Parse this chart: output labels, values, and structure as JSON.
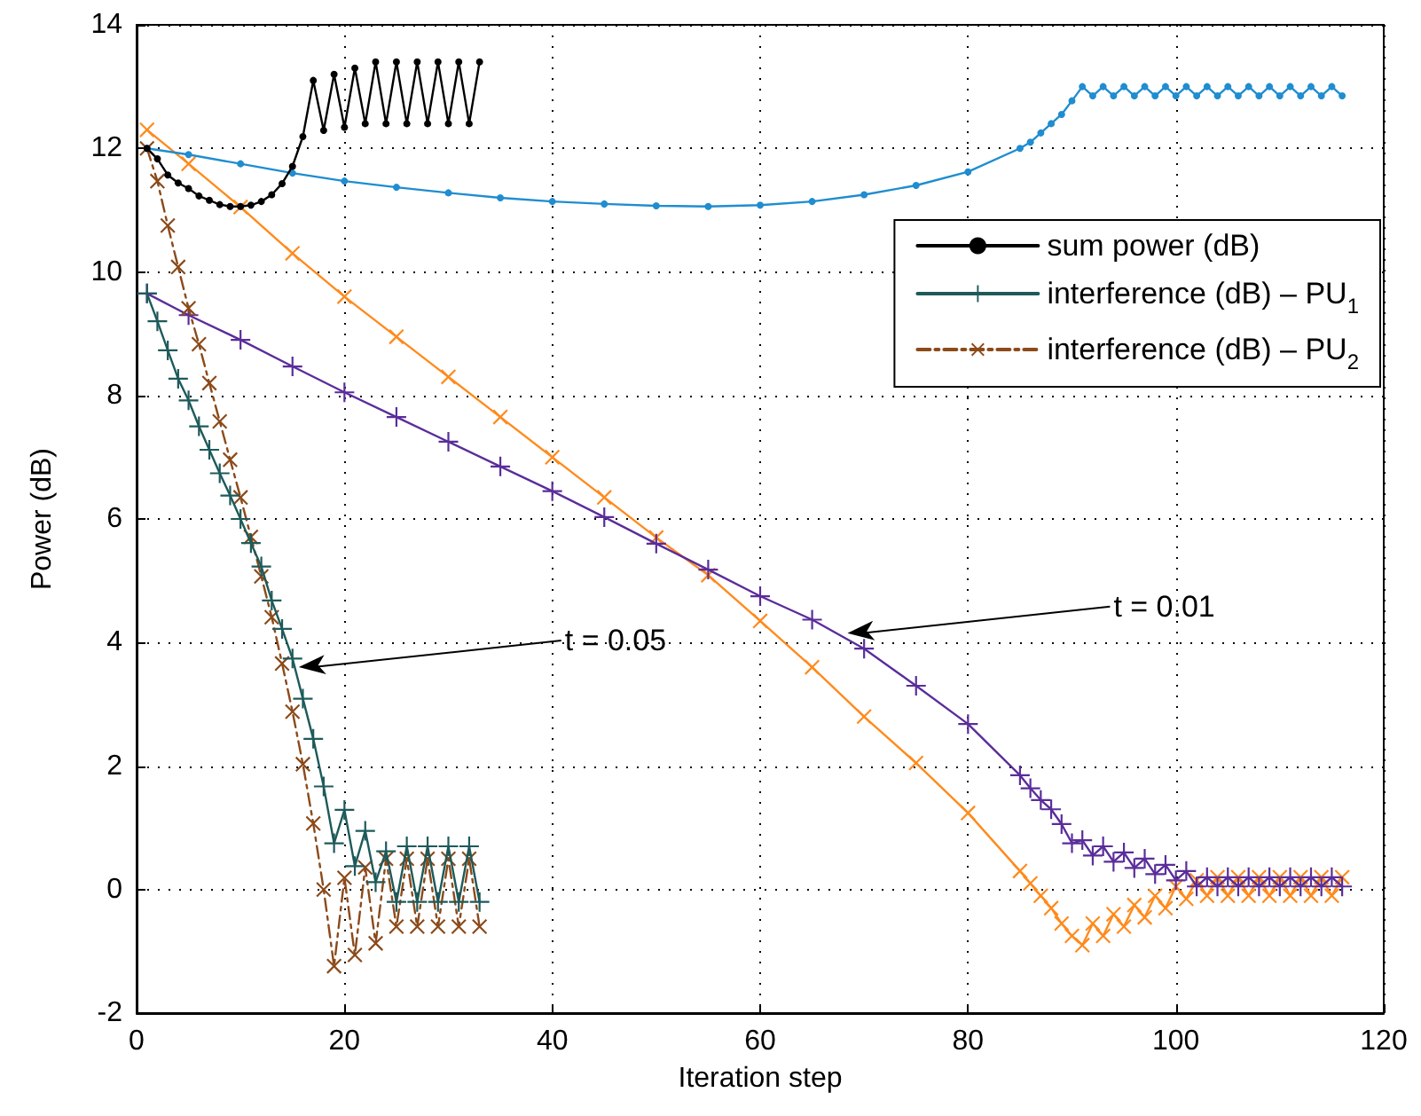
{
  "chart_data": {
    "type": "line",
    "xlabel": "Iteration step",
    "ylabel": "Power (dB)",
    "xlim": [
      0,
      120
    ],
    "xticks": [
      0,
      20,
      40,
      60,
      80,
      100,
      120
    ],
    "ylim": [
      -2,
      14
    ],
    "yticks": [
      -2,
      0,
      2,
      4,
      6,
      8,
      10,
      12,
      14
    ],
    "grid": true,
    "legend": "top right",
    "annotations": [
      {
        "text": "t = 0.05",
        "x": 15.6,
        "y": 3.6
      },
      {
        "text": "t = 0.01",
        "x": 68.4,
        "y": 4.15
      }
    ],
    "series": [
      {
        "name": "sum power (dB)",
        "color": "#000000",
        "marker": "circle",
        "line_style": "solid",
        "x": [
          1,
          2,
          3,
          4,
          5,
          6,
          7,
          8,
          9,
          10,
          11,
          12,
          13,
          14,
          15,
          16,
          17,
          18,
          19,
          20,
          21,
          22,
          23,
          24,
          25,
          26,
          27,
          28,
          29,
          30,
          31,
          32,
          33
        ],
        "values": [
          12.0,
          11.83,
          11.57,
          11.44,
          11.35,
          11.23,
          11.16,
          11.09,
          11.06,
          11.06,
          11.08,
          11.14,
          11.25,
          11.43,
          11.71,
          12.19,
          13.1,
          12.29,
          13.2,
          12.34,
          13.3,
          12.4,
          13.4,
          12.4,
          13.4,
          12.4,
          13.4,
          12.4,
          13.4,
          12.4,
          13.4,
          12.4,
          13.4
        ]
      },
      {
        "name": "interference (dB) – PU$_{1}$",
        "color": "#1e5a5a",
        "marker": "plus",
        "line_style": "solid",
        "x": [
          1,
          2,
          3,
          4,
          5,
          6,
          7,
          8,
          9,
          10,
          11,
          12,
          13,
          14,
          15,
          16,
          17,
          18,
          19,
          20,
          21,
          22,
          23,
          24,
          25,
          26,
          27,
          28,
          29,
          30,
          31,
          32,
          33
        ],
        "values": [
          9.65,
          9.2,
          8.73,
          8.27,
          7.92,
          7.5,
          7.12,
          6.74,
          6.38,
          6.0,
          5.61,
          5.23,
          4.68,
          4.22,
          3.74,
          3.09,
          2.44,
          1.67,
          0.75,
          1.29,
          0.38,
          0.95,
          0.12,
          0.62,
          -0.2,
          0.7,
          -0.2,
          0.7,
          -0.2,
          0.7,
          -0.2,
          0.7,
          -0.2
        ]
      },
      {
        "name": "interference (dB) – PU$_{2}$",
        "color": "#8b4a1a",
        "marker": "cross",
        "line_style": "dashed",
        "x": [
          1,
          2,
          3,
          4,
          5,
          6,
          7,
          8,
          9,
          10,
          11,
          12,
          13,
          14,
          15,
          16,
          17,
          18,
          19,
          20,
          21,
          22,
          23,
          24,
          25,
          26,
          27,
          28,
          29,
          30,
          31,
          32,
          33
        ],
        "values": [
          12.0,
          11.47,
          10.75,
          10.08,
          9.41,
          8.83,
          8.2,
          7.58,
          6.96,
          6.35,
          5.71,
          5.07,
          4.41,
          3.66,
          2.88,
          2.03,
          1.07,
          0.0,
          -1.24,
          0.19,
          -1.06,
          0.36,
          -0.87,
          0.5,
          -0.6,
          0.5,
          -0.6,
          0.5,
          -0.6,
          0.5,
          -0.6,
          0.5,
          -0.6
        ]
      },
      {
        "color": "#1f8dd0",
        "marker": "circle",
        "line_style": "solid",
        "x": [
          1,
          5,
          10,
          15,
          20,
          25,
          30,
          35,
          40,
          45,
          50,
          55,
          60,
          65,
          70,
          75,
          80,
          85,
          86,
          87,
          88,
          89,
          90,
          91,
          92,
          93,
          94,
          95,
          96,
          97,
          98,
          99,
          100,
          101,
          102,
          103,
          104,
          105,
          106,
          107,
          108,
          109,
          110,
          111,
          112,
          113,
          114,
          115,
          116
        ],
        "values": [
          12.0,
          11.9,
          11.75,
          11.6,
          11.47,
          11.37,
          11.28,
          11.2,
          11.14,
          11.1,
          11.07,
          11.06,
          11.08,
          11.14,
          11.25,
          11.4,
          11.62,
          12.0,
          12.1,
          12.25,
          12.4,
          12.55,
          12.77,
          13.0,
          12.85,
          13.0,
          12.85,
          13.0,
          12.85,
          13.0,
          12.85,
          13.0,
          12.85,
          13.0,
          12.85,
          13.0,
          12.85,
          13.0,
          12.85,
          13.0,
          12.85,
          13.0,
          12.85,
          13.0,
          12.85,
          13.0,
          12.85,
          13.0,
          12.85
        ]
      },
      {
        "color": "#5a2d9a",
        "marker": "plus",
        "line_style": "solid",
        "x": [
          1,
          5,
          10,
          15,
          20,
          25,
          30,
          35,
          40,
          45,
          50,
          55,
          60,
          65,
          70,
          75,
          80,
          85,
          86,
          87,
          88,
          89,
          90,
          91,
          92,
          93,
          94,
          95,
          96,
          97,
          98,
          99,
          100,
          101,
          102,
          103,
          104,
          105,
          106,
          107,
          108,
          109,
          110,
          111,
          112,
          113,
          114,
          115,
          116
        ],
        "values": [
          9.65,
          9.3,
          8.9,
          8.47,
          8.05,
          7.65,
          7.25,
          6.85,
          6.45,
          6.03,
          5.6,
          5.18,
          4.75,
          4.37,
          3.9,
          3.3,
          2.68,
          1.85,
          1.64,
          1.45,
          1.3,
          1.06,
          0.75,
          0.8,
          0.55,
          0.7,
          0.45,
          0.6,
          0.35,
          0.5,
          0.25,
          0.4,
          0.15,
          0.3,
          0.05,
          0.2,
          0.05,
          0.2,
          0.05,
          0.2,
          0.05,
          0.2,
          0.05,
          0.2,
          0.05,
          0.2,
          0.05,
          0.2,
          0.05
        ]
      },
      {
        "color": "#ff8a1c",
        "marker": "cross",
        "line_style": "solid",
        "x": [
          1,
          5,
          10,
          15,
          20,
          25,
          30,
          35,
          40,
          45,
          50,
          55,
          60,
          65,
          70,
          75,
          80,
          85,
          86,
          87,
          88,
          89,
          90,
          91,
          92,
          93,
          94,
          95,
          96,
          97,
          98,
          99,
          100,
          101,
          102,
          103,
          104,
          105,
          106,
          107,
          108,
          109,
          110,
          111,
          112,
          113,
          114,
          115,
          116
        ],
        "values": [
          12.3,
          11.75,
          11.05,
          10.3,
          9.6,
          8.95,
          8.3,
          7.65,
          7.0,
          6.35,
          5.7,
          5.09,
          4.35,
          3.6,
          2.8,
          2.05,
          1.24,
          0.3,
          0.1,
          -0.1,
          -0.3,
          -0.55,
          -0.75,
          -0.9,
          -0.55,
          -0.75,
          -0.4,
          -0.6,
          -0.25,
          -0.45,
          -0.1,
          -0.3,
          0.05,
          -0.15,
          0.15,
          -0.1,
          0.2,
          -0.1,
          0.2,
          -0.1,
          0.2,
          -0.1,
          0.2,
          -0.1,
          0.2,
          -0.1,
          0.2,
          -0.1,
          0.2
        ]
      }
    ]
  }
}
